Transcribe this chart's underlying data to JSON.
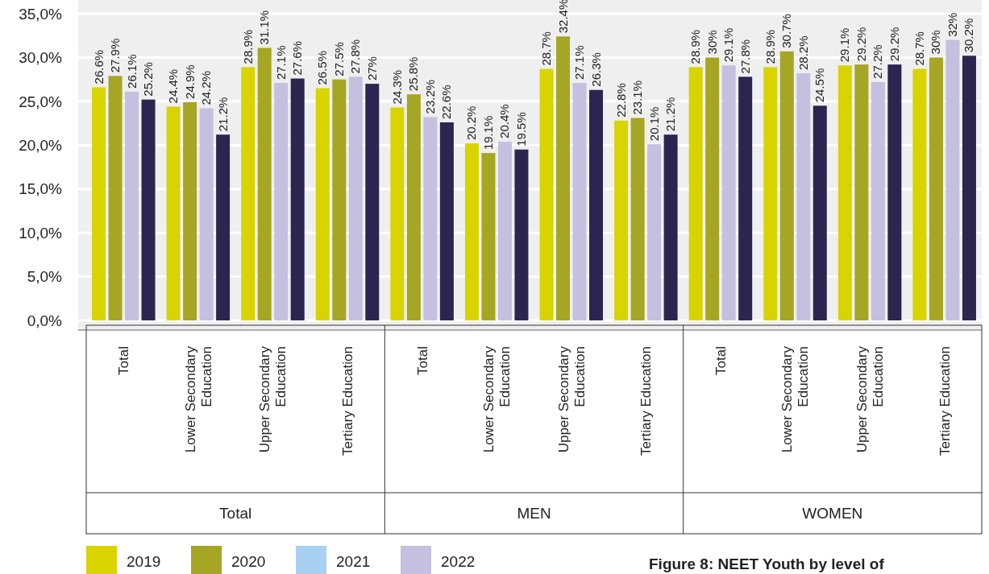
{
  "chart_data": {
    "type": "bar",
    "categories": [
      "Total",
      "Lower Secondary Education",
      "Upper Secondary Education",
      "Tertiary Education",
      "Total",
      "Lower Secondary Education",
      "Upper Secondary Education",
      "Tertiary Education",
      "Total",
      "Lower Secondary Education",
      "Upper Secondary Education",
      "Tertiary Education"
    ],
    "series": [
      {
        "name": "2019",
        "color": "#d9d400",
        "values": [
          26.6,
          24.4,
          28.9,
          26.5,
          24.3,
          20.2,
          28.7,
          22.8,
          28.9,
          28.9,
          29.1,
          28.7
        ],
        "value_labels": [
          "26.6%",
          "24.4%",
          "28.9%",
          "26.5%",
          "24.3%",
          "20.2%",
          "28.7%",
          "22.8%",
          "28.9%",
          "28.9%",
          "29.1%",
          "28.7%"
        ]
      },
      {
        "name": "2020",
        "color": "#a5a623",
        "values": [
          27.9,
          24.9,
          31.1,
          27.5,
          25.8,
          19.1,
          32.4,
          23.1,
          30,
          30.7,
          29.2,
          30
        ],
        "value_labels": [
          "27.9%",
          "24.9%",
          "31.1%",
          "27.5%",
          "25.8%",
          "19.1%",
          "32.4%",
          "23.1%",
          "30%",
          "30.7%",
          "29.2%",
          "30%"
        ]
      },
      {
        "name": "2021",
        "color": "#a8d0f0",
        "values": [
          null,
          null,
          null,
          null,
          null,
          null,
          null,
          null,
          null,
          null,
          null,
          null
        ]
      },
      {
        "name": "2022",
        "color": "#c5bfe0",
        "values": [
          26.1,
          24.2,
          27.1,
          27.8,
          23.2,
          20.4,
          27.1,
          20.1,
          29.1,
          28.2,
          27.2,
          32
        ],
        "value_labels": [
          "26.1%",
          "24.2%",
          "27.1%",
          "27.8%",
          "23.2%",
          "20.4%",
          "27.1%",
          "20.1%",
          "29.1%",
          "28.2%",
          "27.2%",
          "32%"
        ]
      },
      {
        "color": "#2c2550",
        "values": [
          25.2,
          21.2,
          27.6,
          27,
          22.6,
          19.5,
          26.3,
          21.2,
          27.8,
          24.5,
          29.2,
          30.2
        ],
        "value_labels": [
          "25.2%",
          "21.2%",
          "27.6%",
          "27%",
          "22.6%",
          "19.5%",
          "26.3%",
          "21.2%",
          "27.8%",
          "24.5%",
          "29.2%",
          "30.2%"
        ]
      }
    ],
    "ylim": [
      0,
      35
    ],
    "yticks": [
      {
        "value": 0,
        "label": "0,0%"
      },
      {
        "value": 5,
        "label": "5,0%"
      },
      {
        "value": 10,
        "label": "10,0%"
      },
      {
        "value": 15,
        "label": "15,0%"
      },
      {
        "value": 20,
        "label": "20,0%"
      },
      {
        "value": 25,
        "label": "25,0%"
      },
      {
        "value": 30,
        "label": "30,0%"
      },
      {
        "value": 35,
        "label": "35,0%"
      }
    ],
    "grid": "y",
    "legend": "bottom left",
    "annotations": [
      "Total",
      "MEN",
      "WOMEN",
      "Figure 8: NEET Youth by level of"
    ]
  }
}
